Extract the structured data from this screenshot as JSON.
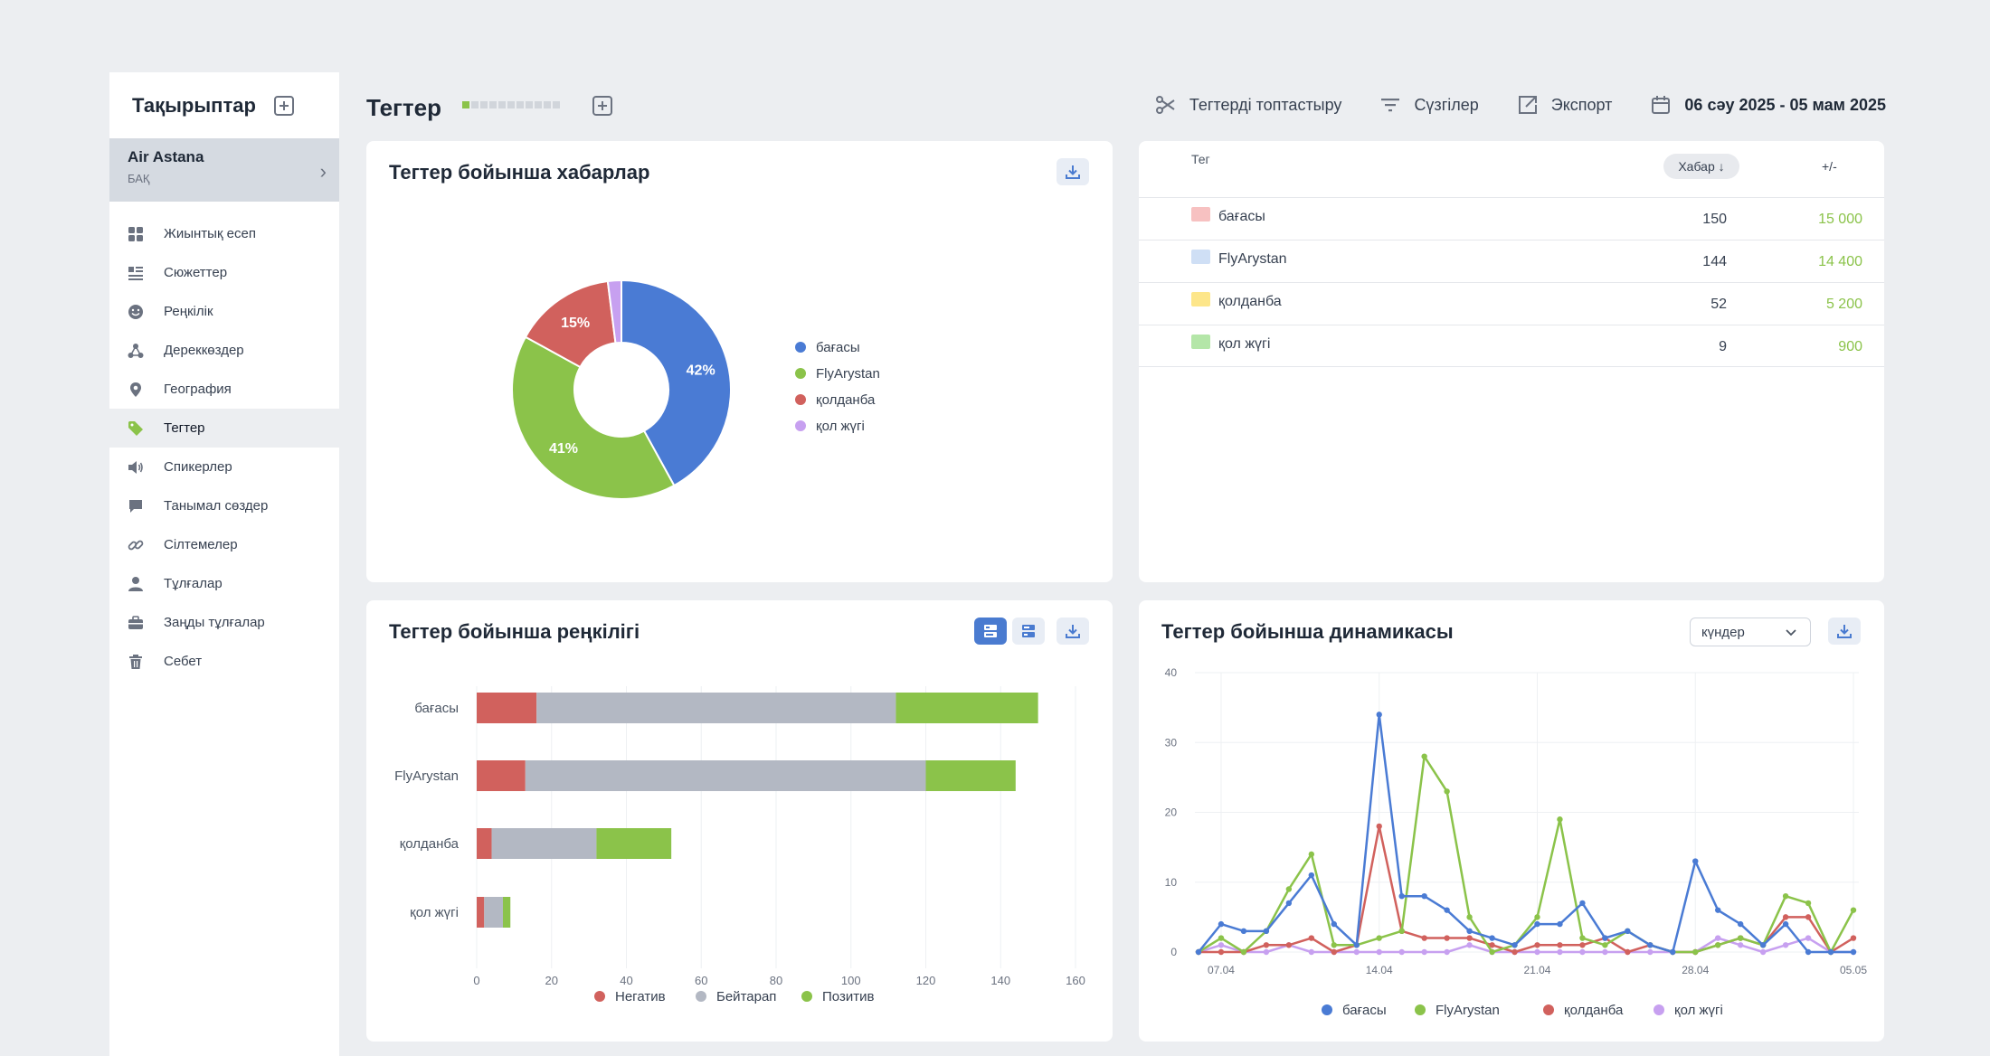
{
  "sidebar": {
    "title": "Тақырыптар",
    "project": {
      "name": "Air Astana",
      "type": "БАҚ"
    },
    "items": [
      {
        "label": "Жиынтық есеп",
        "icon": "grid-icon"
      },
      {
        "label": "Сюжеттер",
        "icon": "list-icon"
      },
      {
        "label": "Реңкілік",
        "icon": "smile-icon"
      },
      {
        "label": "Дереккөздер",
        "icon": "network-icon"
      },
      {
        "label": "География",
        "icon": "location-pin-icon"
      },
      {
        "label": "Тегтер",
        "icon": "tag-icon",
        "active": true
      },
      {
        "label": "Спикерлер",
        "icon": "speaker-icon"
      },
      {
        "label": "Танымал сөздер",
        "icon": "chat-bubble-icon"
      },
      {
        "label": "Сілтемелер",
        "icon": "link-icon"
      },
      {
        "label": "Тұлғалар",
        "icon": "person-icon"
      },
      {
        "label": "Заңды тұлғалар",
        "icon": "briefcase-icon"
      },
      {
        "label": "Себет",
        "icon": "trash-icon"
      }
    ]
  },
  "header": {
    "title": "Тегтер",
    "actions": {
      "group": "Тегтерді топтастыру",
      "filters": "Сүзгілер",
      "export": "Экспорт",
      "date_range": "06 сәу 2025 - 05 мам 2025"
    }
  },
  "colors": {
    "blue": "#4a7bd4",
    "green": "#8bc34a",
    "red": "#d1615d",
    "purple": "#c7a0f0",
    "grey": "#b3b8c3",
    "accent": "#4a7bd0"
  },
  "pie_card": {
    "title": "Тегтер бойынша хабарлар",
    "chart_data": {
      "type": "pie",
      "labels": [
        "бағасы",
        "FlyArystan",
        "қолданба",
        "қол жүгі"
      ],
      "values": [
        42,
        41,
        15,
        2
      ],
      "data_labels": [
        "42%",
        "41%",
        "15%",
        ""
      ],
      "colors": [
        "#4a7bd4",
        "#8bc34a",
        "#d1615d",
        "#c7a0f0"
      ],
      "legend": "right"
    }
  },
  "table": {
    "headers": {
      "tag": "Тег",
      "messages": "Хабар ↓",
      "delta": "+/-"
    },
    "rows": [
      {
        "tag": "бағасы",
        "messages": "150",
        "delta": "15 000",
        "color": "#f7c1c1"
      },
      {
        "tag": "FlyArystan",
        "messages": "144",
        "delta": "14 400",
        "color": "#cfdff5"
      },
      {
        "tag": "қолданба",
        "messages": "52",
        "delta": "5 200",
        "color": "#fde68a"
      },
      {
        "tag": "қол жүгі",
        "messages": "9",
        "delta": "900",
        "color": "#b4e6a8"
      }
    ]
  },
  "bar_card": {
    "title": "Тегтер бойынша реңкілігі",
    "chart_data": {
      "type": "bar",
      "orientation": "horizontal",
      "stacked": true,
      "categories": [
        "бағасы",
        "FlyArystan",
        "қолданба",
        "қол жүгі"
      ],
      "series": [
        {
          "name": "Негатив",
          "values": [
            16,
            13,
            4,
            2
          ],
          "color": "#d1615d"
        },
        {
          "name": "Бейтарап",
          "values": [
            96,
            107,
            28,
            5
          ],
          "color": "#b3b8c3"
        },
        {
          "name": "Позитив",
          "values": [
            38,
            24,
            20,
            2
          ],
          "color": "#8bc34a"
        }
      ],
      "xlim": [
        0,
        160
      ],
      "xticks": [
        "0",
        "20",
        "40",
        "60",
        "80",
        "100",
        "120",
        "140",
        "160"
      ],
      "grid": true,
      "legend": "bottom"
    }
  },
  "line_card": {
    "title": "Тегтер бойынша динамикасы",
    "period_select": "күндер",
    "chart_data": {
      "type": "line",
      "x": [
        "06.04",
        "07.04",
        "08.04",
        "09.04",
        "10.04",
        "11.04",
        "12.04",
        "13.04",
        "14.04",
        "15.04",
        "16.04",
        "17.04",
        "18.04",
        "19.04",
        "20.04",
        "21.04",
        "22.04",
        "23.04",
        "24.04",
        "25.04",
        "26.04",
        "27.04",
        "28.04",
        "29.04",
        "30.04",
        "01.05",
        "02.05",
        "03.05",
        "04.05",
        "05.05"
      ],
      "xticks": [
        "07.04",
        "14.04",
        "21.04",
        "28.04",
        "05.05"
      ],
      "ylim": [
        0,
        40
      ],
      "yticks": [
        "0",
        "10",
        "20",
        "30",
        "40"
      ],
      "series": [
        {
          "name": "бағасы",
          "color": "#4a7bd4",
          "values": [
            0,
            4,
            3,
            3,
            7,
            11,
            4,
            1,
            34,
            8,
            8,
            6,
            3,
            2,
            1,
            4,
            4,
            7,
            2,
            3,
            1,
            0,
            13,
            6,
            4,
            1,
            4,
            0,
            0,
            0
          ]
        },
        {
          "name": "FlyArystan",
          "color": "#8bc34a",
          "values": [
            0,
            2,
            0,
            3,
            9,
            14,
            1,
            1,
            2,
            3,
            28,
            23,
            5,
            0,
            1,
            5,
            19,
            2,
            1,
            3,
            1,
            0,
            0,
            1,
            2,
            1,
            8,
            7,
            0,
            6
          ]
        },
        {
          "name": "қолданба",
          "color": "#d1615d",
          "values": [
            0,
            0,
            0,
            1,
            1,
            2,
            0,
            1,
            18,
            3,
            2,
            2,
            2,
            1,
            0,
            1,
            1,
            1,
            2,
            0,
            1,
            0,
            0,
            1,
            2,
            1,
            5,
            5,
            0,
            2
          ]
        },
        {
          "name": "қол жүгі",
          "color": "#c7a0f0",
          "values": [
            0,
            1,
            0,
            0,
            1,
            0,
            0,
            0,
            0,
            0,
            0,
            0,
            1,
            0,
            0,
            0,
            0,
            0,
            0,
            0,
            0,
            0,
            0,
            2,
            1,
            0,
            1,
            2,
            0,
            0
          ]
        }
      ],
      "grid": true,
      "legend": "bottom"
    }
  }
}
